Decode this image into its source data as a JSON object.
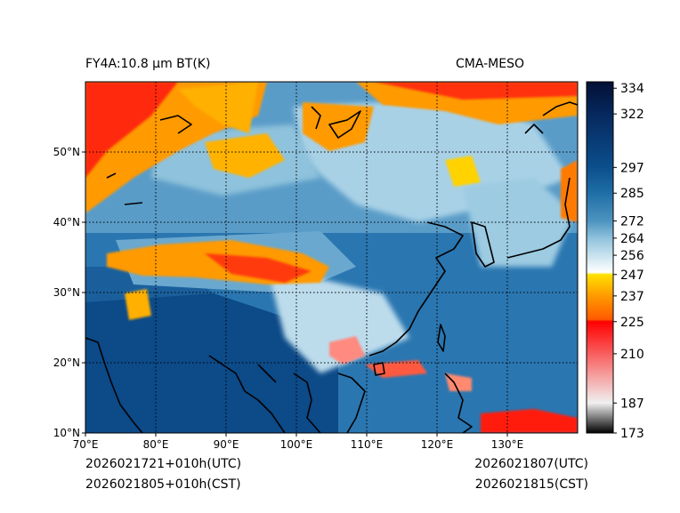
{
  "map": {
    "title_left": "FY4A:10.8 µm BT(K)",
    "title_right": "CMA-MESO",
    "lat_labels": [
      "10°N",
      "20°N",
      "30°N",
      "40°N",
      "50°N"
    ],
    "lat_values": [
      10,
      20,
      30,
      40,
      50
    ],
    "lon_labels": [
      "70°E",
      "80°E",
      "90°E",
      "100°E",
      "110°E",
      "120°E",
      "130°E"
    ],
    "lon_values": [
      70,
      80,
      90,
      100,
      110,
      120,
      130
    ],
    "extent": {
      "lon_min": 70,
      "lon_max": 140,
      "lat_min": 10,
      "lat_max": 60
    },
    "footer": {
      "left_utc": "2026021721+010h(UTC)",
      "left_cst": "2026021805+010h(CST)",
      "right_utc": "2026021807(UTC)",
      "right_cst": "2026021815(CST)"
    }
  },
  "colorbar": {
    "unit": "K",
    "min": 173,
    "max": 337,
    "tick_labels": [
      "334",
      "322",
      "297",
      "285",
      "272",
      "264",
      "256",
      "247",
      "237",
      "225",
      "210",
      "187",
      "173"
    ],
    "tick_values": [
      334,
      322,
      297,
      285,
      272,
      264,
      256,
      247,
      237,
      225,
      210,
      187,
      173
    ],
    "stops": [
      {
        "v": 173,
        "c": "#000000"
      },
      {
        "v": 187,
        "c": "#f0f0f0"
      },
      {
        "v": 225,
        "c": "#ff0000"
      },
      {
        "v": 226,
        "c": "#ff5a00"
      },
      {
        "v": 237,
        "c": "#ff9a00"
      },
      {
        "v": 247,
        "c": "#ffe000"
      },
      {
        "v": 248,
        "c": "#ffffff"
      },
      {
        "v": 256,
        "c": "#c8e2ee"
      },
      {
        "v": 264,
        "c": "#8fc2dc"
      },
      {
        "v": 272,
        "c": "#4d94c0"
      },
      {
        "v": 285,
        "c": "#1f6ea6"
      },
      {
        "v": 297,
        "c": "#0b4f8c"
      },
      {
        "v": 322,
        "c": "#06285e"
      },
      {
        "v": 337,
        "c": "#031034"
      }
    ]
  },
  "colors": {
    "clear_ocean": "#1d65a2",
    "clear_land": "#0d4f8d",
    "cold_cloud_warm": "#ff9a00",
    "cold_cloud_red": "#ff1a10",
    "coast": "#000000"
  }
}
